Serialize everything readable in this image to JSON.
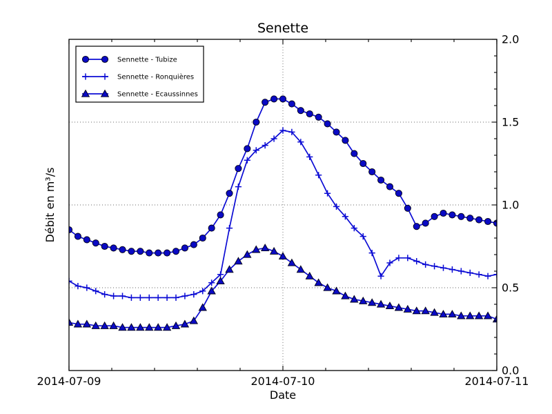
{
  "figure": {
    "title": "Senette",
    "xlabel": "Date",
    "ylabel": "Débit en m³/s"
  },
  "colors": {
    "line": "#0b0bd4",
    "marker_fill": "#0a0ac4",
    "marker_edge": "#000014",
    "axis": "#000000",
    "grid": "#666666",
    "background": "#ffffff"
  },
  "chart_data": {
    "type": "line",
    "title": "Senette",
    "xlabel": "Date",
    "ylabel": "Débit en m³/s",
    "x_unit": "hours since 2014-07-09 00:00",
    "x_range_hours": [
      0,
      48
    ],
    "ylim": [
      0.0,
      2.0
    ],
    "grid": true,
    "legend_position": "upper left",
    "x_tick_hours": [
      0,
      24,
      48
    ],
    "x_tick_labels": [
      "2014-07-09",
      "2014-07-10",
      "2014-07-11"
    ],
    "x_minor_step_hours": 4.8,
    "y_ticks": [
      0.0,
      0.5,
      1.0,
      1.5,
      2.0
    ],
    "y_tick_labels": [
      "0.0",
      "0.5",
      "1.0",
      "1.5",
      "2.0"
    ],
    "y_minor_step": 0.1,
    "series": [
      {
        "name": "Sennette - Tubize",
        "marker": "circle",
        "values": [
          0.85,
          0.81,
          0.79,
          0.77,
          0.75,
          0.74,
          0.73,
          0.72,
          0.72,
          0.71,
          0.71,
          0.71,
          0.72,
          0.74,
          0.76,
          0.8,
          0.86,
          0.94,
          1.07,
          1.22,
          1.34,
          1.5,
          1.62,
          1.64,
          1.64,
          1.61,
          1.57,
          1.55,
          1.53,
          1.49,
          1.44,
          1.39,
          1.31,
          1.25,
          1.2,
          1.15,
          1.11,
          1.07,
          0.98,
          0.87,
          0.89,
          0.93,
          0.95,
          0.94,
          0.93,
          0.92,
          0.91,
          0.9,
          0.89
        ]
      },
      {
        "name": "Sennette - Ronquières",
        "marker": "plus",
        "values": [
          0.54,
          0.51,
          0.5,
          0.48,
          0.46,
          0.45,
          0.45,
          0.44,
          0.44,
          0.44,
          0.44,
          0.44,
          0.44,
          0.45,
          0.46,
          0.48,
          0.53,
          0.58,
          0.86,
          1.11,
          1.27,
          1.33,
          1.36,
          1.4,
          1.45,
          1.44,
          1.38,
          1.29,
          1.18,
          1.07,
          0.99,
          0.93,
          0.86,
          0.81,
          0.71,
          0.57,
          0.65,
          0.68,
          0.68,
          0.66,
          0.64,
          0.63,
          0.62,
          0.61,
          0.6,
          0.59,
          0.58,
          0.57,
          0.58
        ]
      },
      {
        "name": "Sennette - Ecaussinnes",
        "marker": "triangle",
        "values": [
          0.29,
          0.28,
          0.28,
          0.27,
          0.27,
          0.27,
          0.26,
          0.26,
          0.26,
          0.26,
          0.26,
          0.26,
          0.27,
          0.28,
          0.3,
          0.38,
          0.48,
          0.54,
          0.61,
          0.66,
          0.7,
          0.73,
          0.74,
          0.72,
          0.69,
          0.65,
          0.61,
          0.57,
          0.53,
          0.5,
          0.48,
          0.45,
          0.43,
          0.42,
          0.41,
          0.4,
          0.39,
          0.38,
          0.37,
          0.36,
          0.36,
          0.35,
          0.34,
          0.34,
          0.33,
          0.33,
          0.33,
          0.33,
          0.31
        ]
      }
    ]
  }
}
